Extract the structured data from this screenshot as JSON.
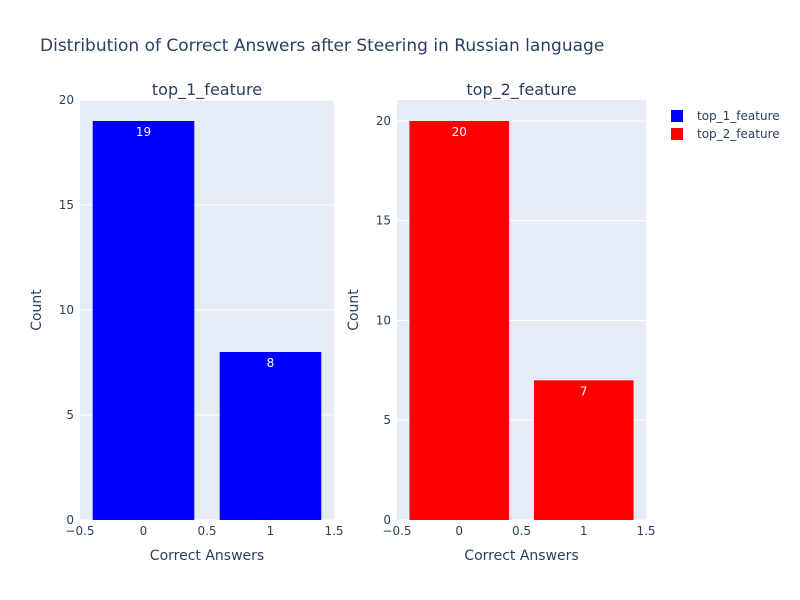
{
  "title": "Distribution of Correct Answers after Steering in Russian language",
  "colors": {
    "plot_bg": "#e5ecf6",
    "grid": "#ffffff",
    "text": "#2a3f5f",
    "bar_label": "#ffffff"
  },
  "legend": {
    "placement": "top-right",
    "items": [
      {
        "name": "top_1_feature",
        "color": "#0000ff"
      },
      {
        "name": "top_2_feature",
        "color": "#ff0000"
      }
    ]
  },
  "chart_data": [
    {
      "type": "bar",
      "title": "top_1_feature",
      "xlabel": "Correct Answers",
      "ylabel": "Count",
      "x": [
        0,
        1
      ],
      "series": [
        {
          "name": "top_1_feature",
          "values": [
            19,
            8
          ],
          "color": "#0000ff"
        }
      ],
      "xlim": [
        -0.5,
        1.5
      ],
      "ylim": [
        0,
        20
      ],
      "xticks": [
        "−0.5",
        "0",
        "0.5",
        "1",
        "1.5"
      ],
      "xtick_values": [
        -0.5,
        0,
        0.5,
        1,
        1.5
      ],
      "yticks": [
        0,
        5,
        10,
        15,
        20
      ],
      "grid": true
    },
    {
      "type": "bar",
      "title": "top_2_feature",
      "xlabel": "Correct Answers",
      "ylabel": "Count",
      "x": [
        0,
        1
      ],
      "series": [
        {
          "name": "top_2_feature",
          "values": [
            20,
            7
          ],
          "color": "#ff0000"
        }
      ],
      "xlim": [
        -0.5,
        1.5
      ],
      "ylim": [
        0,
        21.05
      ],
      "xticks": [
        "−0.5",
        "0",
        "0.5",
        "1",
        "1.5"
      ],
      "xtick_values": [
        -0.5,
        0,
        0.5,
        1,
        1.5
      ],
      "yticks": [
        0,
        5,
        10,
        15,
        20
      ],
      "grid": true
    }
  ]
}
